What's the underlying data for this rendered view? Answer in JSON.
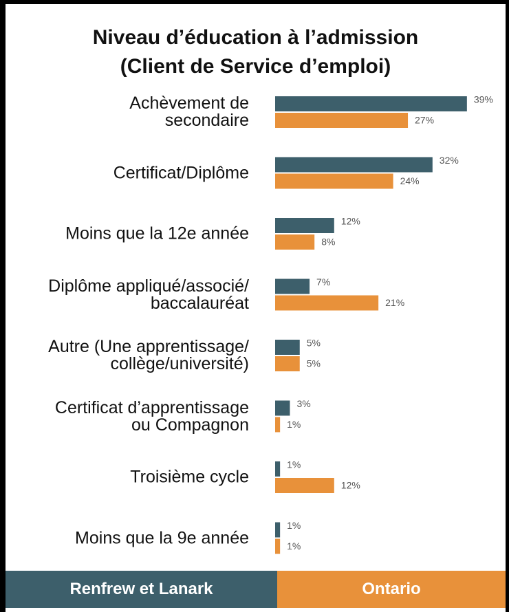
{
  "chart_data": {
    "type": "bar",
    "orientation": "horizontal",
    "title": "Niveau d’éducation à l’admission\n(Client de Service d’emploi)",
    "categories": [
      "Achèvement de\nsecondaire",
      "Certificat/Diplôme",
      "Moins que la 12e année",
      "Diplôme appliqué/associé/\nbaccalauréat",
      "Autre (Une apprentissage/\ncollège/université)",
      "Certificat d’apprentissage\nou Compagnon",
      "Troisième cycle",
      "Moins que la 9e année"
    ],
    "series": [
      {
        "name": "Renfrew et Lanark",
        "color": "#3d5f6b",
        "values": [
          39,
          32,
          12,
          7,
          5,
          3,
          1,
          1
        ],
        "value_labels": [
          "39%",
          "32%",
          "12%",
          "7%",
          "5%",
          "3%",
          "1%",
          "1%"
        ]
      },
      {
        "name": "Ontario",
        "color": "#e8913a",
        "values": [
          27,
          24,
          8,
          21,
          5,
          1,
          12,
          1
        ],
        "value_labels": [
          "27%",
          "24%",
          "8%",
          "21%",
          "5%",
          "1%",
          "12%",
          "1%"
        ]
      }
    ]
  }
}
